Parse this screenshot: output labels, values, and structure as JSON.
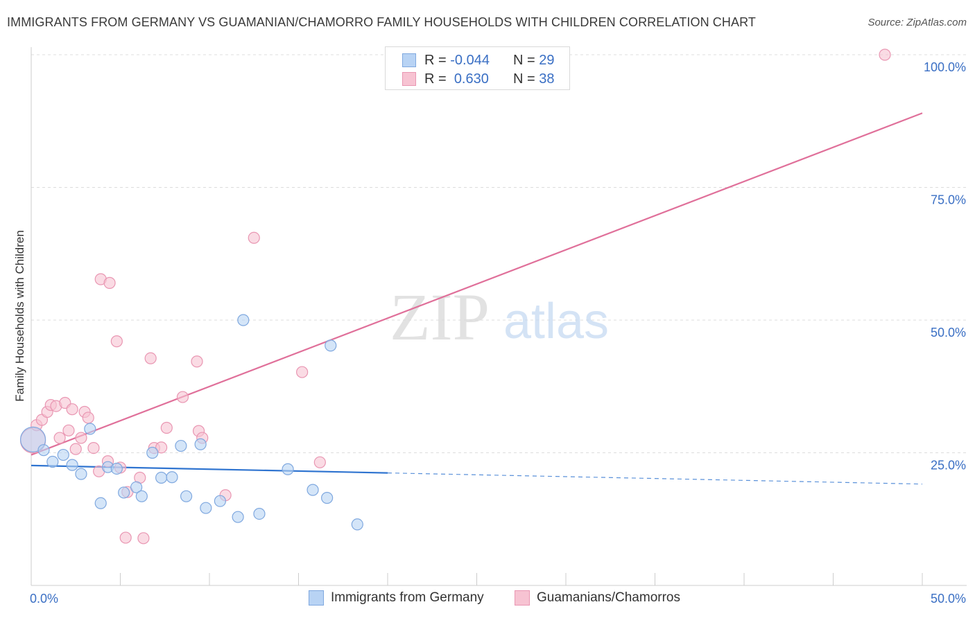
{
  "title": "IMMIGRANTS FROM GERMANY VS GUAMANIAN/CHAMORRO FAMILY HOUSEHOLDS WITH CHILDREN CORRELATION CHART",
  "source": "Source: ZipAtlas.com",
  "watermark": {
    "zip": "ZIP",
    "atlas": "atlas"
  },
  "legend": [
    {
      "r_label": "R =",
      "r_value": "-0.044",
      "n_label": "N =",
      "n_value": "29"
    },
    {
      "r_label": "R =",
      "r_value": "0.630",
      "n_label": "N =",
      "n_value": "38"
    }
  ],
  "colors": {
    "blue_fill": "#b8d3f4",
    "blue_stroke": "#7fa8df",
    "blue_line": "#2f74d0",
    "pink_fill": "#f7c3d2",
    "pink_stroke": "#e996b2",
    "pink_line": "#e0709a",
    "tick_label": "#3a6fc4",
    "grid": "#dcdcdc"
  },
  "chart_data": {
    "type": "scatter",
    "title": "IMMIGRANTS FROM GERMANY VS GUAMANIAN/CHAMORRO FAMILY HOUSEHOLDS WITH CHILDREN CORRELATION CHART",
    "xlabel": "",
    "ylabel": "Family Households with Children",
    "xlim": [
      0,
      50
    ],
    "ylim": [
      0,
      100
    ],
    "x_tick_labels": [
      "0.0%",
      "50.0%"
    ],
    "y_ticks": [
      25,
      50,
      75,
      100
    ],
    "y_tick_labels": [
      "25.0%",
      "50.0%",
      "75.0%",
      "100.0%"
    ],
    "series": [
      {
        "name": "Immigrants from Germany",
        "color": "blue",
        "points": [
          {
            "x": 0.1,
            "y": 27.5,
            "big": true
          },
          {
            "x": 0.7,
            "y": 25.5
          },
          {
            "x": 1.2,
            "y": 23.3
          },
          {
            "x": 1.8,
            "y": 24.6
          },
          {
            "x": 2.3,
            "y": 22.7
          },
          {
            "x": 2.8,
            "y": 21.0
          },
          {
            "x": 3.3,
            "y": 29.5
          },
          {
            "x": 3.9,
            "y": 15.5
          },
          {
            "x": 4.3,
            "y": 22.3
          },
          {
            "x": 4.8,
            "y": 22.0
          },
          {
            "x": 5.2,
            "y": 17.5
          },
          {
            "x": 5.9,
            "y": 18.5
          },
          {
            "x": 6.2,
            "y": 16.8
          },
          {
            "x": 6.8,
            "y": 25.0
          },
          {
            "x": 7.3,
            "y": 20.3
          },
          {
            "x": 7.9,
            "y": 20.4
          },
          {
            "x": 8.4,
            "y": 26.3
          },
          {
            "x": 8.7,
            "y": 16.8
          },
          {
            "x": 9.5,
            "y": 26.6
          },
          {
            "x": 9.8,
            "y": 14.6
          },
          {
            "x": 10.6,
            "y": 15.9
          },
          {
            "x": 11.6,
            "y": 12.9
          },
          {
            "x": 11.9,
            "y": 50.0
          },
          {
            "x": 12.8,
            "y": 13.5
          },
          {
            "x": 14.4,
            "y": 21.9
          },
          {
            "x": 15.8,
            "y": 18.0
          },
          {
            "x": 16.6,
            "y": 16.5
          },
          {
            "x": 16.8,
            "y": 45.2
          },
          {
            "x": 18.3,
            "y": 11.5
          }
        ],
        "trend": {
          "x0": 0,
          "y0": 22.6,
          "x1": 20,
          "y1": 21.2,
          "dash_to_x": 50,
          "dash_to_y": 19.1
        }
      },
      {
        "name": "Guamanians/Chamorros",
        "color": "pink",
        "points": [
          {
            "x": 0.1,
            "y": 27.3,
            "big": true
          },
          {
            "x": 0.3,
            "y": 30.2
          },
          {
            "x": 0.6,
            "y": 31.2
          },
          {
            "x": 0.9,
            "y": 32.7
          },
          {
            "x": 1.1,
            "y": 34.0
          },
          {
            "x": 1.4,
            "y": 33.8
          },
          {
            "x": 1.6,
            "y": 27.8
          },
          {
            "x": 1.9,
            "y": 34.4
          },
          {
            "x": 2.1,
            "y": 29.2
          },
          {
            "x": 2.3,
            "y": 33.2
          },
          {
            "x": 2.5,
            "y": 25.7
          },
          {
            "x": 2.8,
            "y": 27.8
          },
          {
            "x": 3.0,
            "y": 32.7
          },
          {
            "x": 3.2,
            "y": 31.6
          },
          {
            "x": 3.5,
            "y": 25.9
          },
          {
            "x": 3.8,
            "y": 21.5
          },
          {
            "x": 3.9,
            "y": 57.7
          },
          {
            "x": 4.3,
            "y": 23.4
          },
          {
            "x": 4.4,
            "y": 57.0
          },
          {
            "x": 4.8,
            "y": 46.0
          },
          {
            "x": 5.0,
            "y": 22.2
          },
          {
            "x": 5.3,
            "y": 9.0
          },
          {
            "x": 5.4,
            "y": 17.6
          },
          {
            "x": 6.1,
            "y": 20.3
          },
          {
            "x": 6.3,
            "y": 8.9
          },
          {
            "x": 6.7,
            "y": 42.8
          },
          {
            "x": 6.9,
            "y": 25.9
          },
          {
            "x": 7.3,
            "y": 26.0
          },
          {
            "x": 7.6,
            "y": 29.7
          },
          {
            "x": 8.5,
            "y": 35.5
          },
          {
            "x": 9.3,
            "y": 42.2
          },
          {
            "x": 9.4,
            "y": 29.1
          },
          {
            "x": 9.6,
            "y": 27.8
          },
          {
            "x": 10.9,
            "y": 17.0
          },
          {
            "x": 12.5,
            "y": 65.5
          },
          {
            "x": 15.2,
            "y": 40.2
          },
          {
            "x": 16.2,
            "y": 23.2
          },
          {
            "x": 47.9,
            "y": 100.0
          }
        ],
        "trend": {
          "x0": 0,
          "y0": 24.6,
          "x1": 50,
          "y1": 89.0
        }
      }
    ],
    "legend": [
      "Immigrants from Germany",
      "Guamanians/Chamorros"
    ]
  }
}
